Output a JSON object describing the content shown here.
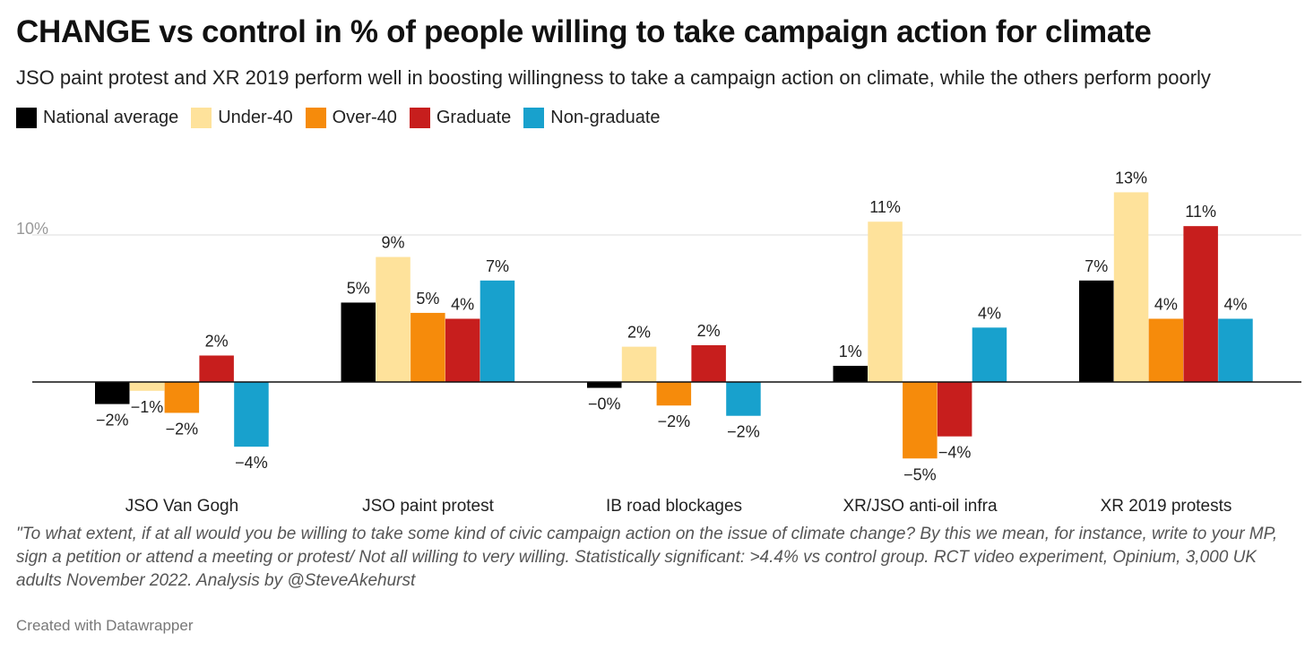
{
  "chart_data": {
    "type": "bar",
    "title": "CHANGE vs control in % of people willing to take campaign action for climate",
    "subtitle": "JSO paint protest and XR 2019 perform well in boosting willingness to take a campaign action on climate, while the others perform poorly",
    "categories": [
      "JSO Van Gogh",
      "JSO paint protest",
      "IB road blockages",
      "XR/JSO anti-oil infra",
      "XR 2019 protests"
    ],
    "series": [
      {
        "name": "National average",
        "color": "#000000",
        "values": [
          -1.5,
          5.4,
          -0.4,
          1.1,
          6.9
        ],
        "labels": [
          "−2%",
          "5%",
          "−0%",
          "1%",
          "7%"
        ]
      },
      {
        "name": "Under-40",
        "color": "#fee29b",
        "values": [
          -0.6,
          8.5,
          2.4,
          10.9,
          12.9
        ],
        "labels": [
          "−1%",
          "9%",
          "2%",
          "11%",
          "13%"
        ]
      },
      {
        "name": "Over-40",
        "color": "#f68b0b",
        "values": [
          -2.1,
          4.7,
          -1.6,
          -5.2,
          4.3
        ],
        "labels": [
          "−2%",
          "5%",
          "−2%",
          "−5%",
          "4%"
        ]
      },
      {
        "name": "Graduate",
        "color": "#c71e1d",
        "values": [
          1.8,
          4.3,
          2.5,
          -3.7,
          10.6
        ],
        "labels": [
          "2%",
          "4%",
          "2%",
          "−4%",
          "11%"
        ]
      },
      {
        "name": "Non-graduate",
        "color": "#18a1cd",
        "values": [
          -4.4,
          6.9,
          -2.3,
          3.7,
          4.3
        ],
        "labels": [
          "−4%",
          "7%",
          "−2%",
          "4%",
          "4%"
        ]
      }
    ],
    "yticks": [
      {
        "value": 10,
        "label": "10%"
      }
    ],
    "ylim": [
      -7,
      14.5
    ],
    "grid": true,
    "legend_position": "top-left"
  },
  "notes": "\"To what extent, if at all would you be willing to take some kind of civic campaign action on the issue of climate change? By this we mean, for instance, write to your MP, sign a petition or attend a meeting or protest/ Not all willing to very willing. Statistically significant: >4.4% vs control group. RCT video experiment, Opinium, 3,000 UK adults November 2022. Analysis by @SteveAkehurst",
  "credit": "Created with Datawrapper"
}
